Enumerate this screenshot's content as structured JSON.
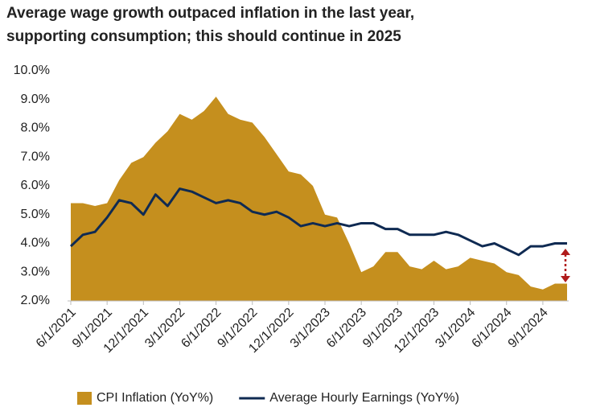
{
  "chart_data": {
    "type": "area-line",
    "title": "Average wage growth outpaced inflation in the last year,",
    "subtitle": "supporting consumption; this should continue in 2025",
    "categories": [
      "6/1/2021",
      null,
      null,
      "9/1/2021",
      null,
      null,
      "12/1/2021",
      null,
      null,
      "3/1/2022",
      null,
      null,
      "6/1/2022",
      null,
      null,
      "9/1/2022",
      null,
      null,
      "12/1/2022",
      null,
      null,
      "3/1/2023",
      null,
      null,
      "6/1/2023",
      null,
      null,
      "9/1/2023",
      null,
      null,
      "12/1/2023",
      null,
      null,
      "3/1/2024",
      null,
      null,
      "6/1/2024",
      null,
      null,
      "9/1/2024",
      null,
      null
    ],
    "series": [
      {
        "name": "CPI Inflation (YoY%)",
        "color": "#c58f1e",
        "style": "area",
        "values": [
          5.4,
          5.4,
          5.3,
          5.4,
          6.2,
          6.8,
          7.0,
          7.5,
          7.9,
          8.5,
          8.3,
          8.6,
          9.1,
          8.5,
          8.3,
          8.2,
          7.7,
          7.1,
          6.5,
          6.4,
          6.0,
          5.0,
          4.9,
          4.0,
          3.0,
          3.2,
          3.7,
          3.7,
          3.2,
          3.1,
          3.4,
          3.1,
          3.2,
          3.5,
          3.4,
          3.3,
          3.0,
          2.9,
          2.5,
          2.4,
          2.6,
          2.6
        ]
      },
      {
        "name": "Average Hourly Earnings (YoY%)",
        "color": "#0f2a52",
        "style": "line",
        "values": [
          3.9,
          4.3,
          4.4,
          4.9,
          5.5,
          5.4,
          5.0,
          5.7,
          5.3,
          5.9,
          5.8,
          5.6,
          5.4,
          5.5,
          5.4,
          5.1,
          5.0,
          5.1,
          4.9,
          4.6,
          4.7,
          4.6,
          4.7,
          4.6,
          4.7,
          4.7,
          4.5,
          4.5,
          4.3,
          4.3,
          4.3,
          4.4,
          4.3,
          4.1,
          3.9,
          4.0,
          3.8,
          3.6,
          3.9,
          3.9,
          4.0,
          4.0
        ]
      }
    ],
    "ylim": [
      2,
      10
    ],
    "yticks": [
      {
        "value": 2,
        "label": "2.0%"
      },
      {
        "value": 3,
        "label": "3.0%"
      },
      {
        "value": 4,
        "label": "4.0%"
      },
      {
        "value": 5,
        "label": "5.0%"
      },
      {
        "value": 6,
        "label": "6.0%"
      },
      {
        "value": 7,
        "label": "7.0%"
      },
      {
        "value": 8,
        "label": "8.0%"
      },
      {
        "value": 9,
        "label": "9.0%"
      },
      {
        "value": 10,
        "label": "10.0%"
      }
    ],
    "grid": false,
    "legend": "bottom"
  }
}
